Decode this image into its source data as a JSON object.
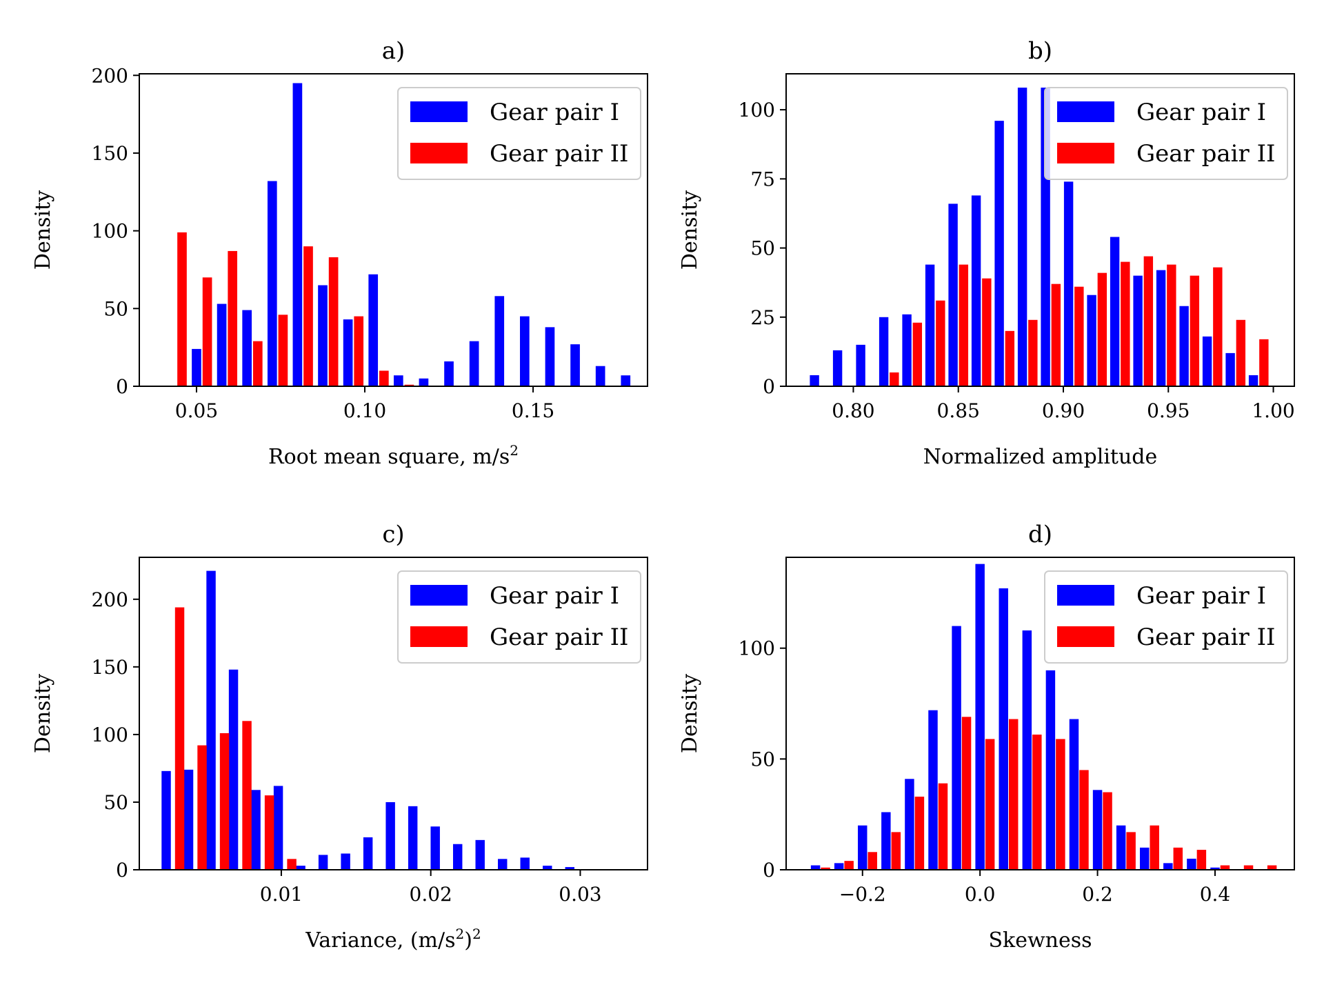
{
  "chart_data": [
    {
      "type": "bar",
      "title": "a)",
      "xlabel_main": "Root mean square, m/s",
      "xlabel_sup": "2",
      "xlabel_tail": "",
      "ylabel": "Density",
      "xlim": [
        0.033,
        0.184
      ],
      "ylim": [
        0,
        201
      ],
      "xticks": [
        0.05,
        0.1,
        0.15
      ],
      "xtick_labels": [
        "0.05",
        "0.10",
        "0.15"
      ],
      "yticks": [
        0,
        50,
        100,
        150,
        200
      ],
      "ytick_labels": [
        "0",
        "50",
        "100",
        "150",
        "200"
      ],
      "bar_width": 0.0028,
      "legend_position": "top-right",
      "series": [
        {
          "name": "Gear pair I",
          "color": "#0000ff",
          "x": [
            0.05,
            0.0575,
            0.065,
            0.0725,
            0.08,
            0.0875,
            0.095,
            0.1025,
            0.11,
            0.1175,
            0.125,
            0.1325,
            0.14,
            0.1475,
            0.155,
            0.1625,
            0.17,
            0.1775
          ],
          "values": [
            24,
            53,
            49,
            132,
            195,
            65,
            43,
            72,
            7,
            5,
            16,
            29,
            58,
            45,
            38,
            27,
            13,
            7
          ]
        },
        {
          "name": "Gear pair II",
          "color": "#ff0000",
          "x": [
            0.0457,
            0.0532,
            0.0607,
            0.0682,
            0.0757,
            0.0832,
            0.0907,
            0.0982,
            0.1057,
            0.1132
          ],
          "values": [
            99,
            70,
            87,
            29,
            46,
            90,
            83,
            45,
            10,
            1
          ]
        }
      ]
    },
    {
      "type": "bar",
      "title": "b)",
      "xlabel_main": "Normalized amplitude",
      "xlabel_sup": "",
      "xlabel_tail": "",
      "ylabel": "Density",
      "xlim": [
        0.768,
        1.01
      ],
      "ylim": [
        0,
        113
      ],
      "xticks": [
        0.8,
        0.85,
        0.9,
        0.95,
        1.0
      ],
      "xtick_labels": [
        "0.80",
        "0.85",
        "0.90",
        "0.95",
        "1.00"
      ],
      "yticks": [
        0,
        25,
        50,
        75,
        100
      ],
      "ytick_labels": [
        "0",
        "25",
        "50",
        "75",
        "100"
      ],
      "bar_width": 0.0044,
      "legend_position": "top-right",
      "series": [
        {
          "name": "Gear pair I",
          "color": "#0000ff",
          "x": [
            0.7815,
            0.7925,
            0.8035,
            0.8145,
            0.8255,
            0.8365,
            0.8475,
            0.8585,
            0.8695,
            0.8805,
            0.8915,
            0.9025,
            0.9135,
            0.9245,
            0.9355,
            0.9465,
            0.9575,
            0.9685,
            0.9795,
            0.9905
          ],
          "values": [
            4,
            13,
            15,
            25,
            26,
            44,
            66,
            69,
            96,
            108,
            108,
            74,
            33,
            54,
            40,
            42,
            29,
            18,
            12,
            4
          ]
        },
        {
          "name": "Gear pair II",
          "color": "#ff0000",
          "x": [
            0.8195,
            0.8305,
            0.8415,
            0.8525,
            0.8635,
            0.8745,
            0.8855,
            0.8965,
            0.9075,
            0.9185,
            0.9295,
            0.9405,
            0.9515,
            0.9625,
            0.9735,
            0.9845,
            0.9955
          ],
          "values": [
            5,
            23,
            31,
            44,
            39,
            20,
            24,
            37,
            36,
            41,
            45,
            47,
            44,
            40,
            43,
            24,
            17
          ]
        }
      ]
    },
    {
      "type": "bar",
      "title": "c)",
      "xlabel_main": "Variance, (m/s",
      "xlabel_sup": "2",
      "xlabel_tail": ")",
      "xlabel_sup2": "2",
      "ylabel": "Density",
      "xlim": [
        0.0005,
        0.0345
      ],
      "ylim": [
        0,
        231
      ],
      "xticks": [
        0.01,
        0.02,
        0.03
      ],
      "xtick_labels": [
        "0.01",
        "0.02",
        "0.03"
      ],
      "yticks": [
        0,
        50,
        100,
        150,
        200
      ],
      "ytick_labels": [
        "0",
        "50",
        "100",
        "150",
        "200"
      ],
      "bar_width": 0.00062,
      "legend_position": "top-right",
      "series": [
        {
          "name": "Gear pair I",
          "color": "#0000ff",
          "x": [
            0.0023,
            0.0038,
            0.0053,
            0.0068,
            0.0083,
            0.0098,
            0.0113,
            0.0128,
            0.0143,
            0.0158,
            0.0173,
            0.0188,
            0.0203,
            0.0218,
            0.0233,
            0.0248,
            0.0263,
            0.0278,
            0.0293,
            0.0308
          ],
          "values": [
            73,
            74,
            221,
            148,
            59,
            62,
            3,
            11,
            12,
            24,
            50,
            47,
            32,
            19,
            22,
            8,
            9,
            3,
            2,
            0
          ]
        },
        {
          "name": "Gear pair II",
          "color": "#ff0000",
          "x": [
            0.0032,
            0.0047,
            0.0062,
            0.0077,
            0.0092,
            0.0107
          ],
          "values": [
            194,
            92,
            101,
            110,
            55,
            8
          ]
        }
      ]
    },
    {
      "type": "bar",
      "title": "d)",
      "xlabel_main": "Skewness",
      "xlabel_sup": "",
      "xlabel_tail": "",
      "ylabel": "Density",
      "xlim": [
        -0.33,
        0.535
      ],
      "ylim": [
        0,
        141
      ],
      "xticks": [
        -0.2,
        0.0,
        0.2,
        0.4
      ],
      "xtick_labels": [
        "−0.2",
        "0.0",
        "0.2",
        "0.4"
      ],
      "yticks": [
        0,
        50,
        100
      ],
      "ytick_labels": [
        "0",
        "50",
        "100"
      ],
      "bar_width": 0.0158,
      "legend_position": "top-right",
      "series": [
        {
          "name": "Gear pair I",
          "color": "#0000ff",
          "x": [
            -0.28,
            -0.24,
            -0.2,
            -0.16,
            -0.12,
            -0.08,
            -0.04,
            0.0,
            0.04,
            0.08,
            0.12,
            0.16,
            0.2,
            0.24,
            0.28,
            0.32,
            0.36,
            0.4
          ],
          "values": [
            2,
            3,
            20,
            26,
            41,
            72,
            110,
            138,
            127,
            108,
            90,
            68,
            36,
            20,
            10,
            3,
            5,
            1
          ]
        },
        {
          "name": "Gear pair II",
          "color": "#ff0000",
          "x": [
            -0.263,
            -0.223,
            -0.183,
            -0.143,
            -0.103,
            -0.063,
            -0.023,
            0.017,
            0.057,
            0.097,
            0.137,
            0.177,
            0.217,
            0.257,
            0.297,
            0.337,
            0.377,
            0.417,
            0.457,
            0.497
          ],
          "values": [
            1,
            4,
            8,
            17,
            33,
            39,
            69,
            59,
            68,
            61,
            59,
            45,
            35,
            17,
            20,
            10,
            9,
            2,
            2,
            2
          ]
        }
      ]
    }
  ]
}
